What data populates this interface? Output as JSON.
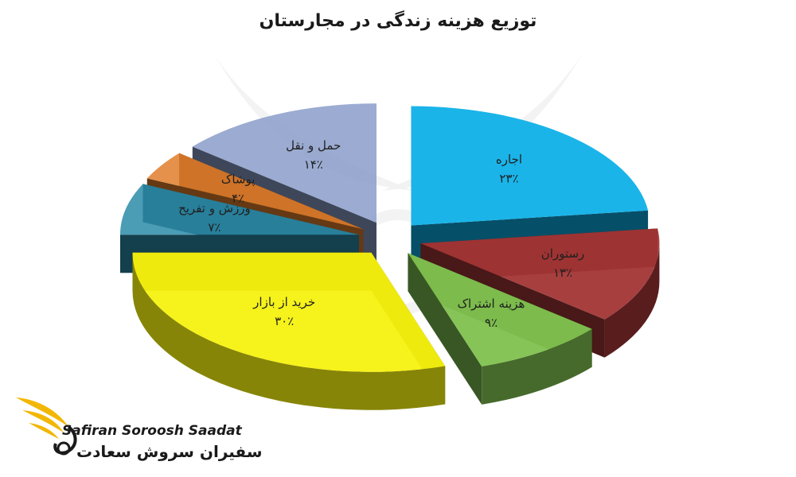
{
  "chart_data": {
    "type": "pie",
    "title": "توزیع هزینه زندگی در مجارستان",
    "categories": [
      "اجاره",
      "رستوران",
      "هزینه اشتراک",
      "خرید از بازار",
      "ورزش و تفریح",
      "پوشاک",
      "حمل و نقل"
    ],
    "values": [
      23,
      13,
      9,
      30,
      7,
      4,
      14
    ],
    "value_labels": [
      "۲۳٪",
      "۱۳٪",
      "۹٪",
      "۳۰٪",
      "۷٪",
      "۴٪",
      "۱۴٪"
    ],
    "colors": [
      "#0eb0e8",
      "#a33535",
      "#7fc14f",
      "#f5f10f",
      "#2c8ba8",
      "#e07e2b",
      "#8a9cc9"
    ],
    "legend": "none",
    "style": "3d-exploded"
  },
  "logo": {
    "name_en": "Safiran Soroosh Saadat",
    "name_fa": "سفیران سروش سعادت",
    "accent_color": "#f2b705"
  }
}
